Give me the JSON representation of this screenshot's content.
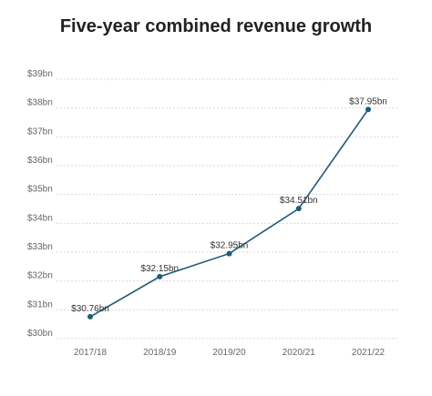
{
  "chart_data": {
    "type": "line",
    "title": "Five-year combined revenue growth",
    "xlabel": "",
    "ylabel": "",
    "categories": [
      "2017/18",
      "2018/19",
      "2019/20",
      "2020/21",
      "2021/22"
    ],
    "values": [
      30.76,
      32.15,
      32.95,
      34.51,
      37.95
    ],
    "data_labels": [
      "$30.76bn",
      "$32.15bn",
      "$32.95bn",
      "$34.51bn",
      "$37.95bn"
    ],
    "y_ticks": [
      30,
      31,
      32,
      33,
      34,
      35,
      36,
      37,
      38,
      39
    ],
    "y_tick_labels": [
      "$30bn",
      "$31bn",
      "$32bn",
      "$33bn",
      "$34bn",
      "$35bn",
      "$36bn",
      "$37bn",
      "$38bn",
      "$39bn"
    ],
    "ylim": [
      30,
      39
    ],
    "grid": true,
    "legend": "none",
    "colors": {
      "line": "#1f5a78",
      "marker": "#1f5a78"
    }
  }
}
